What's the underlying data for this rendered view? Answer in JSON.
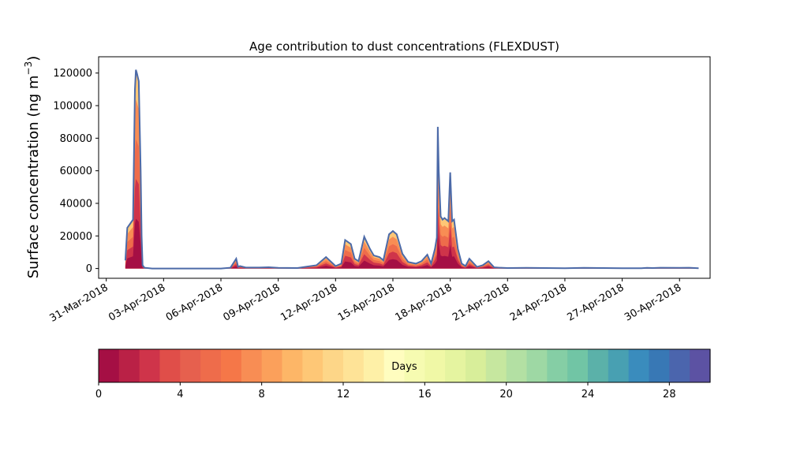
{
  "chart_data": [
    {
      "type": "area",
      "title": "Age contribution to dust concentrations (FLEXDUST)",
      "ylabel_prefix": "Surface concentration (ng m",
      "ylabel_exp": "−3",
      "ylabel_suffix": ")",
      "xlabel": "",
      "ylim": [
        -6000,
        130000
      ],
      "yticks": [
        0,
        20000,
        40000,
        60000,
        80000,
        100000,
        120000
      ],
      "ytick_labels": [
        "0",
        "20000",
        "40000",
        "60000",
        "80000",
        "100000",
        "120000"
      ],
      "xlim_days": [
        -0.4,
        31.6
      ],
      "xticks_days": [
        0,
        3,
        6,
        9,
        12,
        15,
        18,
        21,
        24,
        27,
        30
      ],
      "xtick_labels": [
        "31-Mar-2018",
        "03-Apr-2018",
        "06-Apr-2018",
        "09-Apr-2018",
        "12-Apr-2018",
        "15-Apr-2018",
        "18-Apr-2018",
        "21-Apr-2018",
        "24-Apr-2018",
        "27-Apr-2018",
        "30-Apr-2018"
      ],
      "x_days": [
        1.0,
        1.1,
        1.4,
        1.5,
        1.55,
        1.6,
        1.7,
        1.8,
        1.85,
        1.9,
        2.0,
        2.4,
        3,
        6,
        6.5,
        6.8,
        6.9,
        7.0,
        7.3,
        8,
        8.5,
        9,
        10,
        11,
        11.5,
        12,
        12.3,
        12.5,
        12.8,
        13.0,
        13.2,
        13.5,
        13.8,
        14.0,
        14.3,
        14.5,
        14.8,
        15.0,
        15.2,
        15.5,
        15.8,
        16.2,
        16.5,
        16.8,
        17.0,
        17.2,
        17.3,
        17.35,
        17.4,
        17.5,
        17.6,
        17.7,
        17.9,
        18.0,
        18.1,
        18.2,
        18.4,
        18.6,
        18.8,
        19.0,
        19.4,
        19.7,
        20.0,
        20.3,
        20.6,
        21.0,
        22,
        24,
        25,
        26,
        27,
        28,
        28.3,
        28.6,
        29,
        30,
        30.5,
        31.0
      ],
      "total": [
        5000,
        25000,
        30000,
        110000,
        122000,
        120000,
        115000,
        60000,
        20000,
        2000,
        500,
        0,
        0,
        0,
        500,
        6000,
        1000,
        1500,
        600,
        600,
        800,
        400,
        300,
        2000,
        7000,
        1500,
        3000,
        17500,
        15000,
        6000,
        4500,
        19500,
        12000,
        8000,
        7000,
        5000,
        21000,
        23000,
        21000,
        9000,
        4000,
        3000,
        4500,
        8500,
        3000,
        12000,
        19000,
        87000,
        60000,
        32000,
        30000,
        31000,
        29000,
        59000,
        29000,
        30000,
        12000,
        3000,
        1500,
        6000,
        1000,
        2000,
        4500,
        700,
        500,
        300,
        400,
        200,
        400,
        300,
        200,
        200,
        400,
        300,
        500,
        400,
        500,
        200
      ],
      "colorbar_label": "Days",
      "colorbar_range": [
        0,
        30
      ],
      "colorbar_ticks": [
        0,
        4,
        8,
        12,
        16,
        20,
        24,
        28
      ],
      "colorbar_tick_labels": [
        "0",
        "4",
        "8",
        "12",
        "16",
        "20",
        "24",
        "28"
      ],
      "colorbar_colors": [
        "#a50f44",
        "#ba2146",
        "#cf344a",
        "#e04e49",
        "#e6604e",
        "#ee6c4b",
        "#f57748",
        "#f88d54",
        "#fba05b",
        "#fdb667",
        "#fec776",
        "#fdd688",
        "#fee397",
        "#fef0a7",
        "#fffdbf",
        "#f6fbb1",
        "#f0f8a6",
        "#e5f4a0",
        "#d8ee9a",
        "#c6e79f",
        "#b3e0a3",
        "#9ed8a4",
        "#85cea5",
        "#71c5a5",
        "#5bb1a9",
        "#48a0b2",
        "#3a8cbd",
        "#3878b5",
        "#4b65ad",
        "#5c52a3"
      ],
      "outline_color": "#4c6aa8"
    }
  ]
}
